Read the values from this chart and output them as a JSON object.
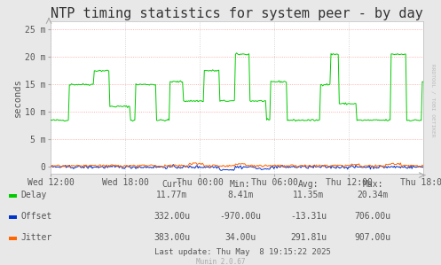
{
  "title": "NTP timing statistics for system peer - by day",
  "ylabel": "seconds",
  "background_color": "#e8e8e8",
  "plot_bg_color": "#ffffff",
  "grid_color_h": "#ff9999",
  "grid_color_v": "#cccccc",
  "yticks": [
    0,
    5000000,
    10000000,
    15000000,
    20000000,
    25000000
  ],
  "ytick_labels": [
    "0",
    "5 m",
    "10 m",
    "15 m",
    "20 m",
    "25 m"
  ],
  "ylim": [
    -1200000,
    26500000
  ],
  "xtick_labels": [
    "Wed 12:00",
    "Wed 18:00",
    "Thu 00:00",
    "Thu 06:00",
    "Thu 12:00",
    "Thu 18:00"
  ],
  "delay_color": "#00cc00",
  "offset_color": "#0033cc",
  "jitter_color": "#ff6600",
  "watermark": "RRDTOOL / TOBI OETIKER",
  "munin_label": "Munin 2.0.67",
  "stats_header": [
    "Cur:",
    "Min:",
    "Avg:",
    "Max:"
  ],
  "stats": [
    [
      "Delay",
      "11.77m",
      "8.41m",
      "11.35m",
      "20.34m"
    ],
    [
      "Offset",
      "332.00u",
      "-970.00u",
      "-13.31u",
      "706.00u"
    ],
    [
      "Jitter",
      "383.00u",
      "34.00u",
      "291.81u",
      "907.00u"
    ]
  ],
  "last_update": "Last update: Thu May  8 19:15:22 2025",
  "title_fontsize": 11,
  "axis_label_fontsize": 7.5,
  "tick_fontsize": 7,
  "stats_fontsize": 7
}
